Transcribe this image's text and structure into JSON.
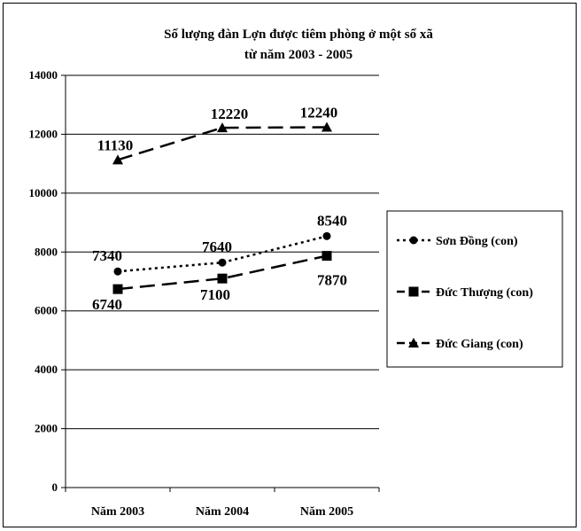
{
  "chart_data": {
    "type": "line",
    "title": "Số lượng đàn Lợn được tiêm phòng ở một số xã",
    "subtitle": "từ năm 2003 - 2005",
    "categories": [
      "Năm 2003",
      "Năm 2004",
      "Năm 2005"
    ],
    "ylim": [
      0,
      14000
    ],
    "yticks": [
      "0",
      "2000",
      "4000",
      "6000",
      "8000",
      "10000",
      "12000",
      "14000"
    ],
    "grid": true,
    "legend_position": "right",
    "series": [
      {
        "name": "Sơn Đồng (con)",
        "values": [
          7340,
          7640,
          8540
        ],
        "labels": [
          "7340",
          "7640",
          "8540"
        ],
        "marker": "circle",
        "dash": "dotted",
        "color": "#000000"
      },
      {
        "name": "Đức Thượng (con)",
        "values": [
          6740,
          7100,
          7870
        ],
        "labels": [
          "6740",
          "7100",
          "7870"
        ],
        "marker": "square",
        "dash": "dashed",
        "color": "#000000"
      },
      {
        "name": "Đức Giang (con)",
        "values": [
          11130,
          12220,
          12240
        ],
        "labels": [
          "11130",
          "12220",
          "12240"
        ],
        "marker": "triangle",
        "dash": "dashed",
        "color": "#000000"
      }
    ]
  }
}
